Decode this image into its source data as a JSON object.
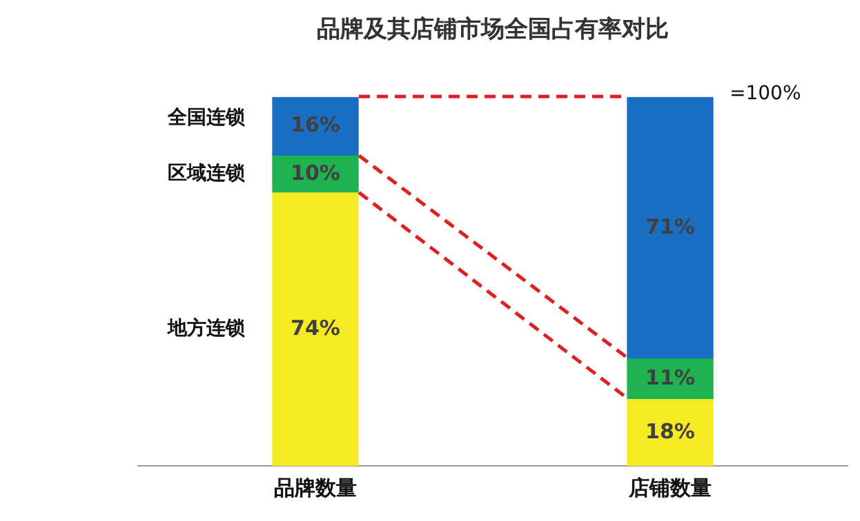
{
  "chart_data": {
    "type": "bar",
    "title": "品牌及其店铺市场全国占有率对比",
    "categories": [
      "品牌数量",
      "店铺数量"
    ],
    "stacked": true,
    "legend": false,
    "grid": false,
    "series": [
      {
        "name": "地方连锁",
        "color": "#f6ea24",
        "values": [
          74,
          18
        ],
        "value_labels": [
          "74%",
          "18%"
        ]
      },
      {
        "name": "区域连锁",
        "color": "#1fb250",
        "values": [
          10,
          11
        ],
        "value_labels": [
          "10%",
          "11%"
        ]
      },
      {
        "name": "全国连锁",
        "color": "#1b6fc2",
        "values": [
          16,
          71
        ],
        "value_labels": [
          "16%",
          "71%"
        ]
      }
    ],
    "annotations": [
      "=100%"
    ]
  }
}
